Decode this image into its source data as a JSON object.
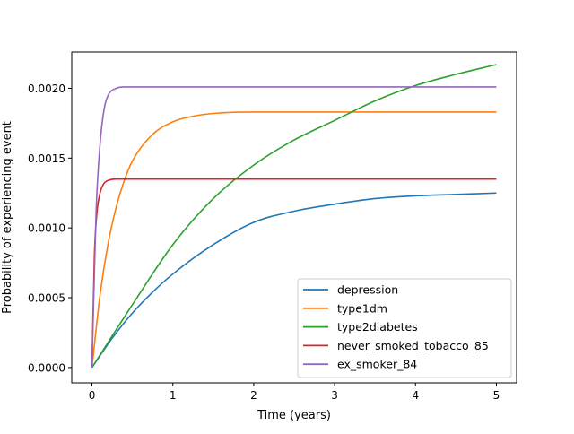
{
  "chart_data": {
    "type": "line",
    "title": "",
    "xlabel": "Time (years)",
    "ylabel": "Probability of experiencing event",
    "xlim": [
      -0.25,
      5.25
    ],
    "ylim": [
      -0.00011,
      0.00226
    ],
    "xticks": [
      0,
      1,
      2,
      3,
      4,
      5
    ],
    "xtick_labels": [
      "0",
      "1",
      "2",
      "3",
      "4",
      "5"
    ],
    "yticks": [
      0,
      0.0005,
      0.001,
      0.0015,
      0.002
    ],
    "ytick_labels": [
      "0.0000",
      "0.0005",
      "0.0010",
      "0.0015",
      "0.0020"
    ],
    "grid": false,
    "legend_position": "lower-right",
    "series": [
      {
        "name": "depression",
        "color": "#1f77b4",
        "x": [
          0,
          0.25,
          0.5,
          0.75,
          1,
          1.5,
          2,
          2.5,
          3,
          3.5,
          4,
          4.5,
          5
        ],
        "y": [
          0,
          0.00021,
          0.00039,
          0.00054,
          0.00067,
          0.00088,
          0.00104,
          0.00112,
          0.00117,
          0.00121,
          0.00123,
          0.00124,
          0.00125
        ]
      },
      {
        "name": "type1dm",
        "color": "#ff7f0e",
        "x": [
          0,
          0.1,
          0.2,
          0.3,
          0.4,
          0.5,
          0.75,
          1,
          1.25,
          1.5,
          2,
          2.5,
          3,
          4,
          5
        ],
        "y": [
          0,
          0.00052,
          0.00089,
          0.00115,
          0.00134,
          0.00148,
          0.00167,
          0.00176,
          0.0018,
          0.00182,
          0.00183,
          0.00183,
          0.00183,
          0.00183,
          0.00183
        ]
      },
      {
        "name": "type2diabetes",
        "color": "#2ca02c",
        "x": [
          0,
          0.5,
          1,
          1.5,
          2,
          2.5,
          3,
          3.5,
          4,
          4.5,
          5
        ],
        "y": [
          0,
          0.00045,
          0.00088,
          0.00121,
          0.00145,
          0.00163,
          0.00177,
          0.00191,
          0.00202,
          0.0021,
          0.00217
        ]
      },
      {
        "name": "never_smoked_tobacco_85",
        "color": "#d62728",
        "x": [
          0,
          0.03,
          0.06,
          0.1,
          0.15,
          0.2,
          0.3,
          1,
          2,
          3,
          4,
          5
        ],
        "y": [
          0,
          0.0008,
          0.0011,
          0.00125,
          0.00132,
          0.00134,
          0.00135,
          0.00135,
          0.00135,
          0.00135,
          0.00135,
          0.00135
        ]
      },
      {
        "name": "ex_smoker_84",
        "color": "#9467bd",
        "x": [
          0,
          0.05,
          0.1,
          0.15,
          0.2,
          0.3,
          0.4,
          0.6,
          1,
          2,
          3,
          4,
          5
        ],
        "y": [
          0,
          0.0011,
          0.0016,
          0.00185,
          0.00195,
          0.002,
          0.00201,
          0.00201,
          0.00201,
          0.00201,
          0.00201,
          0.00201,
          0.00201
        ]
      }
    ]
  }
}
